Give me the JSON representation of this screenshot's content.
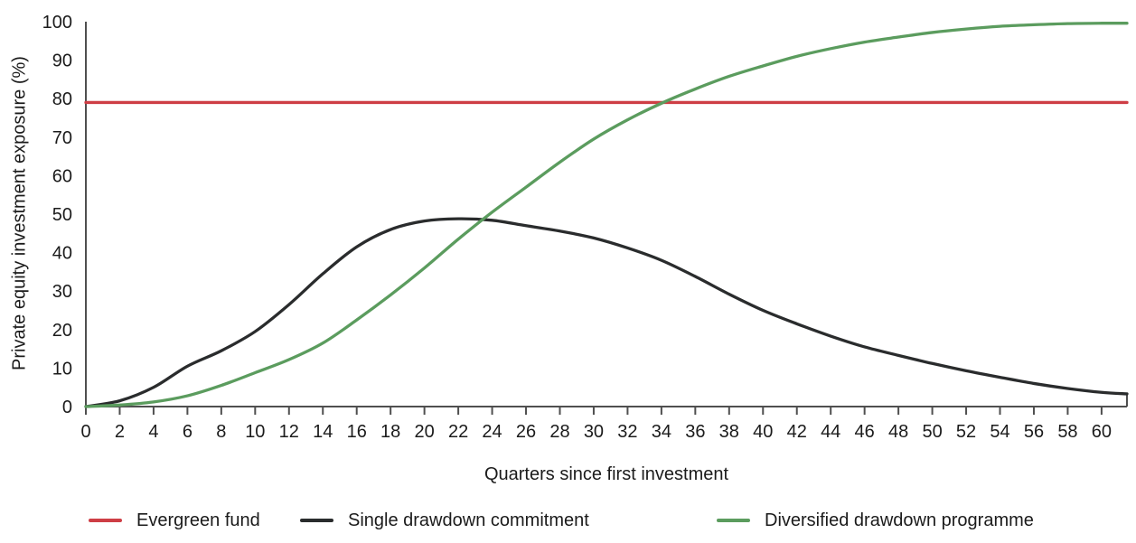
{
  "chart_data": {
    "type": "line",
    "title": "",
    "xlabel": "Quarters since first investment",
    "ylabel": "Private equity investment exposure (%)",
    "xlim": [
      0,
      61.5
    ],
    "ylim": [
      0,
      100
    ],
    "x_ticks": [
      0,
      2,
      4,
      6,
      8,
      10,
      12,
      14,
      16,
      18,
      20,
      22,
      24,
      26,
      28,
      30,
      32,
      34,
      36,
      38,
      40,
      42,
      44,
      46,
      48,
      50,
      52,
      54,
      56,
      58,
      60
    ],
    "y_ticks": [
      0,
      10,
      20,
      30,
      40,
      50,
      60,
      70,
      80,
      90,
      100
    ],
    "grid": false,
    "legend_position": "bottom",
    "axis_color": "#4f4f4f",
    "series": [
      {
        "name": "Evergreen fund",
        "color": "#ce3e45",
        "x": [
          0,
          61.5
        ],
        "values": [
          79,
          79
        ]
      },
      {
        "name": "Single drawdown commitment",
        "color": "#2a2c2d",
        "x": [
          0,
          2,
          4,
          6,
          8,
          10,
          12,
          14,
          16,
          18,
          20,
          22,
          24,
          26,
          28,
          30,
          32,
          34,
          36,
          38,
          40,
          42,
          44,
          46,
          48,
          50,
          52,
          54,
          56,
          58,
          60,
          61.5
        ],
        "values": [
          0,
          1.5,
          5,
          10.5,
          14.5,
          19.5,
          26.5,
          34.5,
          41.5,
          46,
          48.2,
          48.8,
          48.4,
          47,
          45.6,
          43.8,
          41.2,
          38,
          33.8,
          29.2,
          25,
          21.5,
          18.3,
          15.5,
          13.3,
          11.2,
          9.3,
          7.6,
          6,
          4.7,
          3.7,
          3.3
        ]
      },
      {
        "name": "Diversified drawdown programme",
        "color": "#5b9c5e",
        "x": [
          0,
          2,
          4,
          6,
          8,
          10,
          12,
          14,
          16,
          18,
          20,
          22,
          24,
          26,
          28,
          30,
          32,
          34,
          36,
          38,
          40,
          42,
          44,
          46,
          48,
          50,
          52,
          54,
          56,
          58,
          60,
          61.5
        ],
        "values": [
          0,
          0.4,
          1.2,
          2.8,
          5.5,
          8.8,
          12.2,
          16.5,
          22.5,
          29,
          36,
          43.5,
          50.5,
          57,
          63.5,
          69.5,
          74.5,
          78.8,
          82.5,
          85.8,
          88.5,
          91,
          93,
          94.7,
          96,
          97.2,
          98.1,
          98.8,
          99.2,
          99.5,
          99.6,
          99.6
        ]
      }
    ]
  }
}
